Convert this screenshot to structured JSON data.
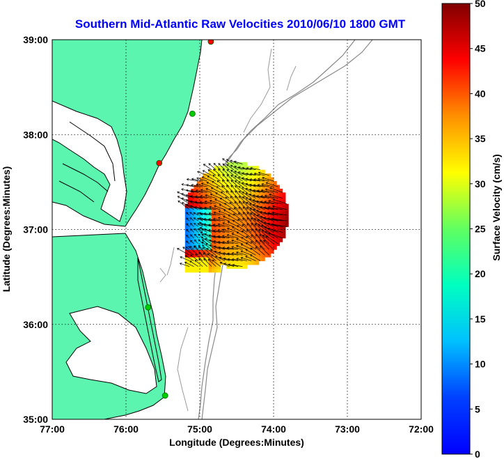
{
  "chart_data": {
    "type": "heatmap",
    "title": "Southern Mid-Atlantic Raw Velocities 2010/06/10 1800 GMT",
    "xlabel": "Longitude (Degrees:Minutes)",
    "ylabel": "Latitude (Degrees:Minutes)",
    "x_ticks": [
      "77:00",
      "76:00",
      "75:00",
      "74:00",
      "73:00",
      "72:00"
    ],
    "y_ticks": [
      "39:00",
      "38:00",
      "37:00",
      "36:00",
      "35:00"
    ],
    "xlim": [
      -77,
      -72
    ],
    "ylim": [
      35,
      39
    ],
    "grid": true,
    "colorbar": {
      "label": "Surface Velocity (cm/s)",
      "ticks": [
        "50",
        "45",
        "40",
        "35",
        "30",
        "25",
        "20",
        "15",
        "10",
        "5",
        "0"
      ],
      "range": [
        0,
        50
      ],
      "colormap": "jet"
    },
    "colors": {
      "land": "#5cf5b0",
      "coast": "#000000",
      "bathymetry": "#888888",
      "title": "#0000ff",
      "arrows": "#000000"
    },
    "velocity_field": {
      "lon_range": [
        -75.2,
        -73.8
      ],
      "lat_range": [
        36.55,
        37.7
      ],
      "max_speed_cm_s": 50,
      "min_speed_cm_s": 10
    },
    "stations": [
      {
        "lon": -74.85,
        "lat": 38.98,
        "color": "#ff0000"
      },
      {
        "lon": -75.1,
        "lat": 38.22,
        "color": "#00cc00"
      },
      {
        "lon": -75.55,
        "lat": 37.7,
        "color": "#ff0000"
      },
      {
        "lon": -75.7,
        "lat": 36.18,
        "color": "#00cc00"
      },
      {
        "lon": -75.47,
        "lat": 35.25,
        "color": "#00cc00"
      }
    ]
  }
}
